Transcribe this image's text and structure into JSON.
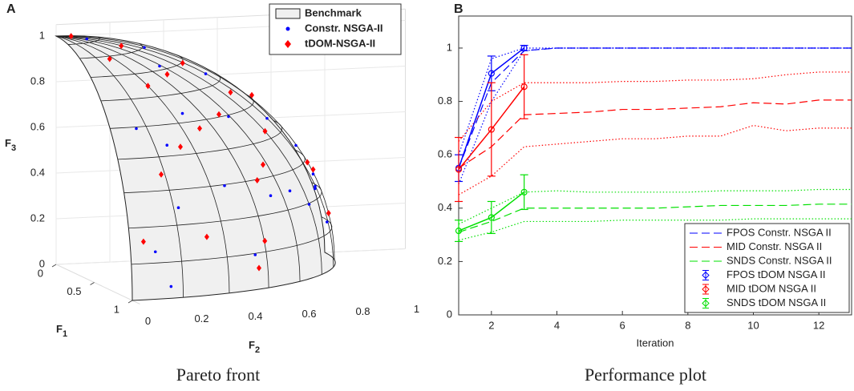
{
  "chart_data": [
    {
      "type": "scatter3d",
      "label": "A",
      "caption": "Pareto front",
      "xlabel": {
        "text": "F",
        "sub": "1"
      },
      "ylabel": {
        "text": "F",
        "sub": "2"
      },
      "zlabel": {
        "text": "F",
        "sub": "3"
      },
      "xlim": [
        0,
        1
      ],
      "ylim": [
        0,
        1
      ],
      "zlim": [
        0,
        1
      ],
      "xticks": [
        0,
        0.5,
        1
      ],
      "yticks": [
        0,
        0.2,
        0.4,
        0.6,
        0.8,
        1
      ],
      "zticks": [
        0,
        0.2,
        0.4,
        0.6,
        0.8,
        1
      ],
      "legend": "upper right",
      "series": [
        {
          "name": "Benchmark",
          "color": "#f0f0f0",
          "marker": "surface"
        },
        {
          "name": "Constr. NSGA-II",
          "color": "#0000ff",
          "marker": "dot",
          "x": [
            0.05,
            0.1,
            0.2,
            0.3,
            0.15,
            0.05,
            0.1,
            0.5,
            0.6,
            0.7,
            0.8,
            0.9,
            0.95,
            0.98,
            0.6,
            0.4,
            0.7,
            0.3,
            0.85,
            0.5,
            0.2,
            0.75
          ],
          "y": [
            0.1,
            0.3,
            0.5,
            0.7,
            0.85,
            0.95,
            0.98,
            0.5,
            0.3,
            0.1,
            0.4,
            0.2,
            0.1,
            0.15,
            0.7,
            0.85,
            0.6,
            0.3,
            0.5,
            0.8,
            0.9,
            0.2
          ],
          "z": [
            0.99,
            0.95,
            0.84,
            0.65,
            0.5,
            0.3,
            0.15,
            0.7,
            0.74,
            0.7,
            0.45,
            0.38,
            0.2,
            0.05,
            0.38,
            0.35,
            0.38,
            0.9,
            0.15,
            0.3,
            0.38,
            0.63
          ]
        },
        {
          "name": "tDOM-NSGA-II",
          "color": "#ff0000",
          "marker": "diamond",
          "x": [
            0.02,
            0.15,
            0.25,
            0.35,
            0.45,
            0.55,
            0.65,
            0.75,
            0.85,
            0.92,
            0.97,
            0.1,
            0.2,
            0.3,
            0.4,
            0.6,
            0.7,
            0.8,
            0.5,
            0.05,
            0.9,
            0.35
          ],
          "y": [
            0.05,
            0.2,
            0.4,
            0.55,
            0.65,
            0.45,
            0.35,
            0.25,
            0.15,
            0.3,
            0.05,
            0.7,
            0.9,
            0.85,
            0.3,
            0.6,
            0.55,
            0.55,
            0.2,
            1.0,
            0.5,
            0.1
          ],
          "z": [
            1.0,
            0.97,
            0.9,
            0.78,
            0.62,
            0.72,
            0.68,
            0.62,
            0.52,
            0.25,
            0.25,
            0.72,
            0.4,
            0.45,
            0.88,
            0.5,
            0.45,
            0.2,
            0.85,
            0.18,
            0.1,
            0.95
          ]
        }
      ]
    },
    {
      "type": "line",
      "label": "B",
      "caption": "Performance plot",
      "xlabel": "Iteration",
      "xlim": [
        1,
        13
      ],
      "xticks": [
        2,
        4,
        6,
        8,
        10,
        12
      ],
      "ylim": [
        0,
        1.12
      ],
      "yticks": [
        0,
        0.2,
        0.4,
        0.6,
        0.8,
        1
      ],
      "legend": "lower right",
      "series": [
        {
          "name": "FPOS Constr. NSGA II",
          "color": "#0000ff",
          "style": "dashed",
          "x": [
            1,
            2,
            3,
            4,
            5,
            6,
            7,
            8,
            9,
            10,
            11,
            12,
            13
          ],
          "values": [
            0.55,
            0.87,
            0.99,
            1,
            1,
            1,
            1,
            1,
            1,
            1,
            1,
            1,
            1
          ]
        },
        {
          "name": "MID Constr. NSGA II",
          "color": "#ff0000",
          "style": "dashed",
          "x": [
            1,
            2,
            3,
            4,
            5,
            6,
            7,
            8,
            9,
            10,
            11,
            12,
            13
          ],
          "values": [
            0.55,
            0.63,
            0.75,
            0.755,
            0.76,
            0.77,
            0.77,
            0.775,
            0.78,
            0.795,
            0.79,
            0.805,
            0.805
          ]
        },
        {
          "name": "SNDS Constr. NSGA II",
          "color": "#00e000",
          "style": "dashed",
          "x": [
            1,
            2,
            3,
            4,
            5,
            6,
            7,
            8,
            9,
            10,
            11,
            12,
            13
          ],
          "values": [
            0.31,
            0.35,
            0.4,
            0.4,
            0.4,
            0.4,
            0.4,
            0.405,
            0.41,
            0.41,
            0.41,
            0.415,
            0.415
          ]
        },
        {
          "color": "#0000ff",
          "style": "dotted",
          "x": [
            1,
            2,
            3,
            4,
            13
          ],
          "values": [
            0.6,
            0.96,
            1,
            1,
            1
          ]
        },
        {
          "color": "#0000ff",
          "style": "dotted",
          "x": [
            1,
            2,
            3,
            4,
            13
          ],
          "values": [
            0.49,
            0.8,
            0.99,
            1,
            1
          ]
        },
        {
          "color": "#ff0000",
          "style": "dotted",
          "x": [
            1,
            2,
            3,
            4,
            5,
            6,
            7,
            8,
            9,
            10,
            11,
            12,
            13
          ],
          "values": [
            0.65,
            0.8,
            0.87,
            0.87,
            0.87,
            0.875,
            0.875,
            0.88,
            0.88,
            0.885,
            0.9,
            0.91,
            0.91
          ]
        },
        {
          "color": "#ff0000",
          "style": "dotted",
          "x": [
            1,
            2,
            3,
            4,
            5,
            6,
            7,
            8,
            9,
            10,
            11,
            12,
            13
          ],
          "values": [
            0.45,
            0.52,
            0.63,
            0.64,
            0.65,
            0.66,
            0.66,
            0.67,
            0.67,
            0.71,
            0.69,
            0.7,
            0.7
          ]
        },
        {
          "color": "#00e000",
          "style": "dotted",
          "x": [
            1,
            2,
            3,
            4,
            5,
            6,
            7,
            8,
            9,
            10,
            11,
            12,
            13
          ],
          "values": [
            0.34,
            0.4,
            0.46,
            0.465,
            0.46,
            0.46,
            0.46,
            0.46,
            0.465,
            0.465,
            0.465,
            0.47,
            0.47
          ]
        },
        {
          "color": "#00e000",
          "style": "dotted",
          "x": [
            1,
            2,
            3,
            4,
            5,
            6,
            7,
            8,
            9,
            10,
            11,
            12,
            13
          ],
          "values": [
            0.28,
            0.31,
            0.35,
            0.35,
            0.35,
            0.355,
            0.355,
            0.355,
            0.355,
            0.36,
            0.36,
            0.36,
            0.36
          ]
        },
        {
          "name": "FPOS tDOM NSGA II",
          "color": "#0000ff",
          "style": "solid",
          "marker": "o",
          "x": [
            1,
            2,
            3
          ],
          "values": [
            0.55,
            0.905,
            1.0
          ],
          "errors": [
            0.05,
            0.065,
            0.01
          ]
        },
        {
          "name": "MID tDOM NSGA II",
          "color": "#ff0000",
          "style": "solid",
          "marker": "o",
          "x": [
            1,
            2,
            3
          ],
          "values": [
            0.545,
            0.695,
            0.855
          ],
          "errors": [
            0.12,
            0.175,
            0.12
          ]
        },
        {
          "name": "SNDS tDOM NSGA II",
          "color": "#00e000",
          "style": "solid",
          "marker": "o",
          "x": [
            1,
            2,
            3
          ],
          "values": [
            0.315,
            0.365,
            0.46
          ],
          "errors": [
            0.04,
            0.06,
            0.065
          ]
        }
      ]
    }
  ]
}
